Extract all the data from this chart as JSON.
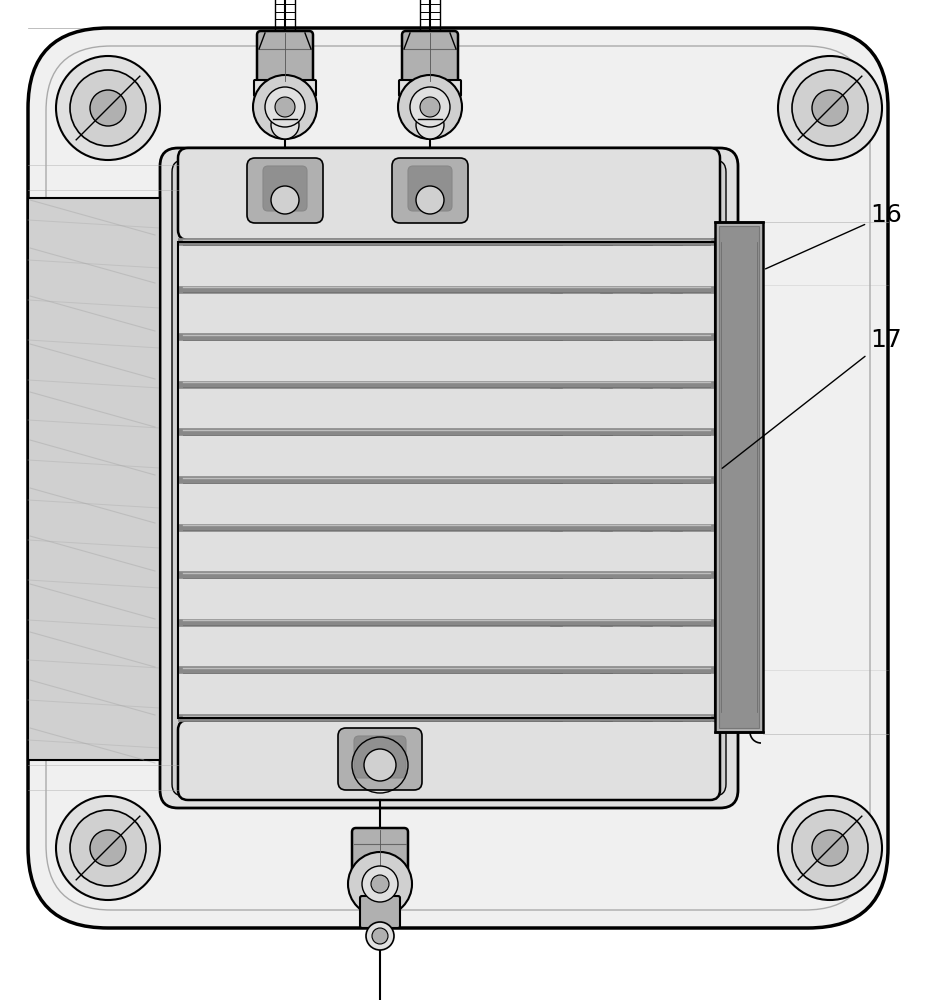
{
  "background_color": "#ffffff",
  "label_16": "16",
  "label_17": "17",
  "line_color": "#000000",
  "text_color": "#000000",
  "fig_width": 9.38,
  "fig_height": 10.0,
  "dpi": 100,
  "lw_thick": 2.0,
  "lw_medium": 1.2,
  "lw_thin": 0.6,
  "gray_outer": "#f0f0f0",
  "gray_mid": "#e0e0e0",
  "gray_inner": "#d0d0d0",
  "gray_dark": "#b0b0b0",
  "gray_darker": "#909090",
  "white": "#ffffff"
}
